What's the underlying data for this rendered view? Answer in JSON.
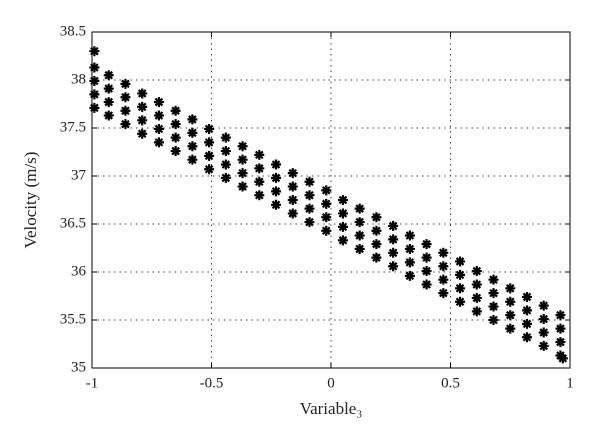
{
  "chart_data": {
    "type": "scatter",
    "x_label": "Variable₃",
    "y_label": "Velocity (m/s)",
    "color": "#000000",
    "grid": true,
    "xlim": [
      -1,
      1
    ],
    "ylim": [
      35,
      38.5
    ],
    "xticks": [
      -1,
      -0.5,
      0,
      0.5,
      1
    ],
    "yticks": [
      35,
      35.5,
      36,
      36.5,
      37,
      37.5,
      38,
      38.5
    ],
    "x": [
      -0.99,
      -0.99,
      -0.99,
      -0.99,
      -0.93,
      -0.93,
      -0.93,
      -0.93,
      -0.86,
      -0.86,
      -0.86,
      -0.86,
      -0.79,
      -0.79,
      -0.79,
      -0.79,
      -0.72,
      -0.72,
      -0.72,
      -0.72,
      -0.65,
      -0.65,
      -0.65,
      -0.65,
      -0.58,
      -0.58,
      -0.58,
      -0.58,
      -0.51,
      -0.51,
      -0.51,
      -0.51,
      -0.44,
      -0.44,
      -0.44,
      -0.44,
      -0.37,
      -0.37,
      -0.37,
      -0.37,
      -0.3,
      -0.3,
      -0.3,
      -0.3,
      -0.23,
      -0.23,
      -0.23,
      -0.23,
      -0.16,
      -0.16,
      -0.16,
      -0.16,
      -0.09,
      -0.09,
      -0.09,
      -0.09,
      -0.02,
      -0.02,
      -0.02,
      -0.02,
      0.05,
      0.05,
      0.05,
      0.05,
      0.12,
      0.12,
      0.12,
      0.12,
      0.19,
      0.19,
      0.19,
      0.19,
      0.26,
      0.26,
      0.26,
      0.26,
      0.33,
      0.33,
      0.33,
      0.33,
      0.4,
      0.4,
      0.4,
      0.4,
      0.47,
      0.47,
      0.47,
      0.47,
      0.54,
      0.54,
      0.54,
      0.54,
      0.61,
      0.61,
      0.61,
      0.61,
      0.68,
      0.68,
      0.68,
      0.68,
      0.75,
      0.75,
      0.75,
      0.75,
      0.82,
      0.82,
      0.82,
      0.82,
      0.89,
      0.89,
      0.89,
      0.89,
      0.96,
      0.96,
      0.96,
      0.96,
      -0.99,
      0.97
    ],
    "values": [
      37.71,
      37.85,
      37.99,
      38.13,
      37.63,
      37.77,
      37.91,
      38.05,
      37.54,
      37.68,
      37.82,
      37.96,
      37.44,
      37.58,
      37.72,
      37.86,
      37.35,
      37.49,
      37.63,
      37.77,
      37.26,
      37.4,
      37.54,
      37.68,
      37.17,
      37.31,
      37.45,
      37.59,
      37.07,
      37.21,
      37.35,
      37.49,
      36.98,
      37.12,
      37.26,
      37.4,
      36.89,
      37.03,
      37.17,
      37.31,
      36.8,
      36.94,
      37.08,
      37.22,
      36.7,
      36.84,
      36.98,
      37.12,
      36.61,
      36.75,
      36.89,
      37.03,
      36.52,
      36.66,
      36.8,
      36.94,
      36.43,
      36.57,
      36.71,
      36.85,
      36.33,
      36.47,
      36.61,
      36.75,
      36.24,
      36.38,
      36.52,
      36.66,
      36.15,
      36.29,
      36.43,
      36.57,
      36.06,
      36.2,
      36.34,
      36.48,
      35.96,
      36.1,
      36.24,
      36.38,
      35.87,
      36.01,
      36.15,
      36.29,
      35.78,
      35.92,
      36.06,
      36.2,
      35.69,
      35.83,
      35.97,
      36.11,
      35.59,
      35.73,
      35.87,
      36.01,
      35.5,
      35.64,
      35.78,
      35.92,
      35.41,
      35.55,
      35.69,
      35.83,
      35.32,
      35.46,
      35.6,
      35.74,
      35.23,
      35.37,
      35.51,
      35.65,
      35.13,
      35.27,
      35.41,
      35.55,
      38.3,
      35.1
    ]
  }
}
